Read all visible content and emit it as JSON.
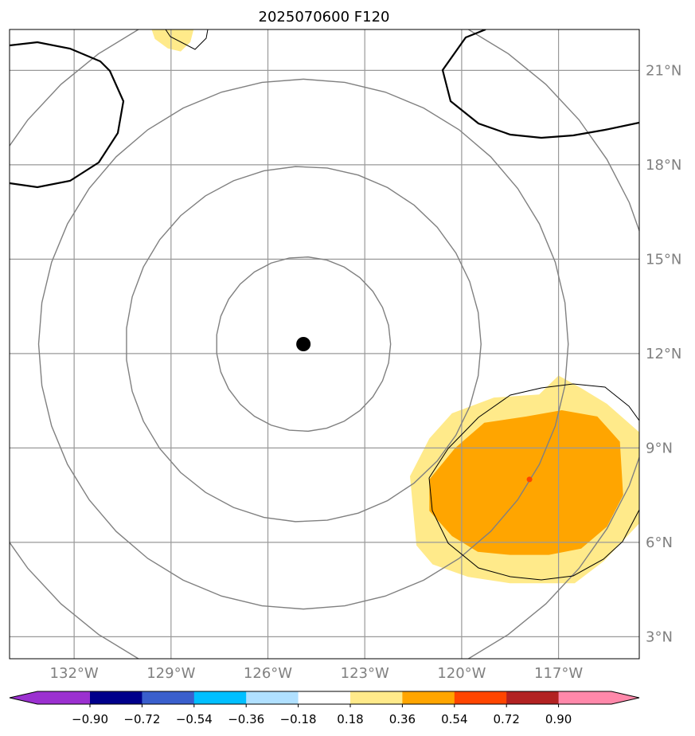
{
  "chart_data": {
    "type": "heatmap",
    "title": "2025070600 F120",
    "map": {
      "lon_range": [
        -134,
        -114.5
      ],
      "lat_range": [
        2.3,
        22.3
      ],
      "lon_ticks": [
        {
          "value": -132,
          "label": "132°W"
        },
        {
          "value": -129,
          "label": "129°W"
        },
        {
          "value": -126,
          "label": "126°W"
        },
        {
          "value": -123,
          "label": "123°W"
        },
        {
          "value": -120,
          "label": "120°W"
        },
        {
          "value": -117,
          "label": "117°W"
        }
      ],
      "lat_ticks": [
        {
          "value": 21,
          "label": "21°N"
        },
        {
          "value": 18,
          "label": "18°N"
        },
        {
          "value": 15,
          "label": "15°N"
        },
        {
          "value": 12,
          "label": "12°N"
        },
        {
          "value": 9,
          "label": "9°N"
        },
        {
          "value": 6,
          "label": "6°N"
        },
        {
          "value": 3,
          "label": "3°N"
        }
      ],
      "grid": true,
      "center_marker": {
        "lon": -124.9,
        "lat": 12.3
      },
      "range_circles_deg": [
        2.7,
        5.5,
        8.2,
        11.0
      ],
      "shading_levels": [
        -0.9,
        -0.72,
        -0.54,
        -0.36,
        -0.18,
        0.18,
        0.36,
        0.54,
        0.72,
        0.9
      ],
      "shaded_features": [
        {
          "name": "se_light",
          "level": 0.18,
          "color": "#FFEA8A",
          "points": [
            [
              -121.6,
              8.1
            ],
            [
              -121.0,
              9.3
            ],
            [
              -120.3,
              10.1
            ],
            [
              -119.0,
              10.6
            ],
            [
              -117.6,
              10.7
            ],
            [
              -117.0,
              11.3
            ],
            [
              -116.3,
              10.9
            ],
            [
              -115.5,
              10.4
            ],
            [
              -114.5,
              9.5
            ],
            [
              -114.5,
              6.6
            ],
            [
              -115.6,
              5.4
            ],
            [
              -116.5,
              4.7
            ],
            [
              -118.5,
              4.7
            ],
            [
              -119.8,
              4.9
            ],
            [
              -120.9,
              5.3
            ],
            [
              -121.4,
              5.9
            ],
            [
              -121.5,
              7.0
            ]
          ]
        },
        {
          "name": "se_orange",
          "level": 0.36,
          "color": "#FFA500",
          "points": [
            [
              -121.0,
              8.0
            ],
            [
              -120.2,
              9.0
            ],
            [
              -119.3,
              9.8
            ],
            [
              -118.0,
              10.0
            ],
            [
              -116.9,
              10.2
            ],
            [
              -115.8,
              10.0
            ],
            [
              -115.1,
              9.2
            ],
            [
              -115.0,
              7.5
            ],
            [
              -115.5,
              6.5
            ],
            [
              -116.3,
              5.8
            ],
            [
              -117.3,
              5.6
            ],
            [
              -118.5,
              5.6
            ],
            [
              -119.5,
              5.7
            ],
            [
              -120.3,
              6.2
            ],
            [
              -121.0,
              7.0
            ]
          ]
        },
        {
          "name": "north_light",
          "level": 0.18,
          "color": "#FFEA8A",
          "points": [
            [
              -129.6,
              22.3
            ],
            [
              -128.3,
              22.3
            ],
            [
              -128.4,
              21.9
            ],
            [
              -128.7,
              21.6
            ],
            [
              -129.1,
              21.7
            ],
            [
              -129.5,
              22.0
            ]
          ]
        }
      ],
      "feature_marker": {
        "lon": -117.9,
        "lat": 8.0,
        "color": "#FF4500"
      }
    },
    "colorbar": {
      "ticks": [
        "−0.90",
        "−0.72",
        "−0.54",
        "−0.36",
        "−0.18",
        "0.18",
        "0.36",
        "0.54",
        "0.72",
        "0.90"
      ],
      "colors": [
        "#9B30D0",
        "#00008B",
        "#3A5FCD",
        "#00BFFF",
        "#B0E0FF",
        "#FFFFFF",
        "#FFEA8A",
        "#FFA500",
        "#FF4500",
        "#B22222",
        "#FF88AA"
      ]
    }
  }
}
